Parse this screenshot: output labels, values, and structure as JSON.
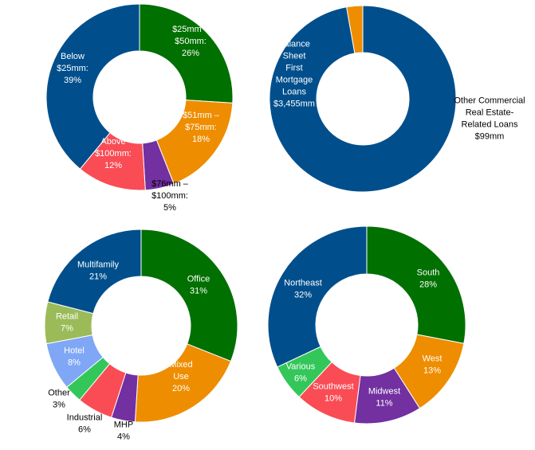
{
  "chart_data": [
    {
      "type": "pie",
      "title": "",
      "slices": [
        {
          "lines": [
            "$25mm –",
            "$50mm:",
            "26%"
          ],
          "value": 26,
          "color": "#007000"
        },
        {
          "lines": [
            "$51mm –",
            "$75mm:",
            "18%"
          ],
          "value": 18,
          "color": "#EE8D00"
        },
        {
          "lines": [
            "$76mm –",
            "$100mm:",
            "5%"
          ],
          "value": 5,
          "color": "#7230A0"
        },
        {
          "lines": [
            "Above",
            "$100mm:",
            "12%"
          ],
          "value": 12,
          "color": "#F94C55"
        },
        {
          "lines": [
            "Below",
            "$25mm:",
            "39%"
          ],
          "value": 39,
          "color": "#004F8C"
        }
      ]
    },
    {
      "type": "pie",
      "title": "",
      "slices": [
        {
          "lines": [
            "Balance",
            "Sheet",
            "First",
            "Mortgage",
            "Loans",
            "$3,455mm"
          ],
          "value": 3455,
          "color": "#004F8C"
        },
        {
          "lines": [
            "Other Commercial",
            "Real Estate-",
            "Related Loans",
            "$99mm"
          ],
          "value": 99,
          "color": "#EE8D00"
        }
      ]
    },
    {
      "type": "pie",
      "title": "",
      "slices": [
        {
          "lines": [
            "Office",
            "31%"
          ],
          "value": 31,
          "color": "#007000"
        },
        {
          "lines": [
            "Mixed",
            "Use",
            "20%"
          ],
          "value": 20,
          "color": "#EE8D00"
        },
        {
          "lines": [
            "MHP",
            "4%"
          ],
          "value": 4,
          "color": "#7230A0"
        },
        {
          "lines": [
            "Industrial",
            "6%"
          ],
          "value": 6,
          "color": "#F94C55"
        },
        {
          "lines": [
            "Other",
            "3%"
          ],
          "value": 3,
          "color": "#33C75A"
        },
        {
          "lines": [
            "Hotel",
            "8%"
          ],
          "value": 8,
          "color": "#7FA7F5"
        },
        {
          "lines": [
            "Retail",
            "7%"
          ],
          "value": 7,
          "color": "#9BBB59"
        },
        {
          "lines": [
            "Multifamily",
            "21%"
          ],
          "value": 21,
          "color": "#004F8C"
        }
      ]
    },
    {
      "type": "pie",
      "title": "",
      "slices": [
        {
          "lines": [
            "South",
            "28%"
          ],
          "value": 28,
          "color": "#007000"
        },
        {
          "lines": [
            "West",
            "13%"
          ],
          "value": 13,
          "color": "#EE8D00"
        },
        {
          "lines": [
            "Midwest",
            "11%"
          ],
          "value": 11,
          "color": "#7230A0"
        },
        {
          "lines": [
            "Southwest",
            "10%"
          ],
          "value": 10,
          "color": "#F94C55"
        },
        {
          "lines": [
            "Various",
            "6%"
          ],
          "value": 6,
          "color": "#33C75A"
        },
        {
          "lines": [
            "Northeast",
            "32%"
          ],
          "value": 32,
          "color": "#004F8C"
        }
      ]
    }
  ]
}
